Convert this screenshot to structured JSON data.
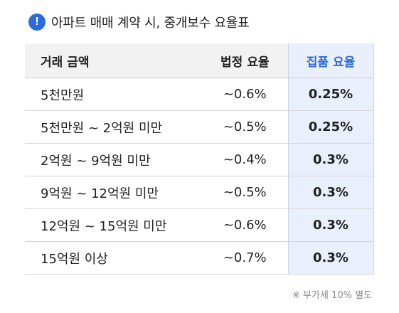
{
  "header": {
    "icon": "exclamation-icon",
    "icon_glyph": "!",
    "title": "아파트 매매 계약 시, 중개보수 요율표"
  },
  "table": {
    "headers": {
      "amount": "거래 금액",
      "legal_rate": "법정 요율",
      "zippum_rate": "집품 요율"
    },
    "rows": [
      {
        "amount": "5천만원",
        "legal_rate": "~0.6%",
        "zippum_rate": "0.25%"
      },
      {
        "amount": "5천만원 ~ 2억원 미만",
        "legal_rate": "~0.5%",
        "zippum_rate": "0.25%"
      },
      {
        "amount": "2억원 ~ 9억원 미만",
        "legal_rate": "~0.4%",
        "zippum_rate": "0.3%"
      },
      {
        "amount": "9억원 ~ 12억원 미만",
        "legal_rate": "~0.5%",
        "zippum_rate": "0.3%"
      },
      {
        "amount": "12억원 ~ 15억원 미만",
        "legal_rate": "~0.6%",
        "zippum_rate": "0.3%"
      },
      {
        "amount": "15억원 이상",
        "legal_rate": "~0.7%",
        "zippum_rate": "0.3%"
      }
    ]
  },
  "footnote": "※ 부가세 10% 별도",
  "colors": {
    "accent": "#2f6bd8",
    "highlight_column": "#e9effb"
  }
}
